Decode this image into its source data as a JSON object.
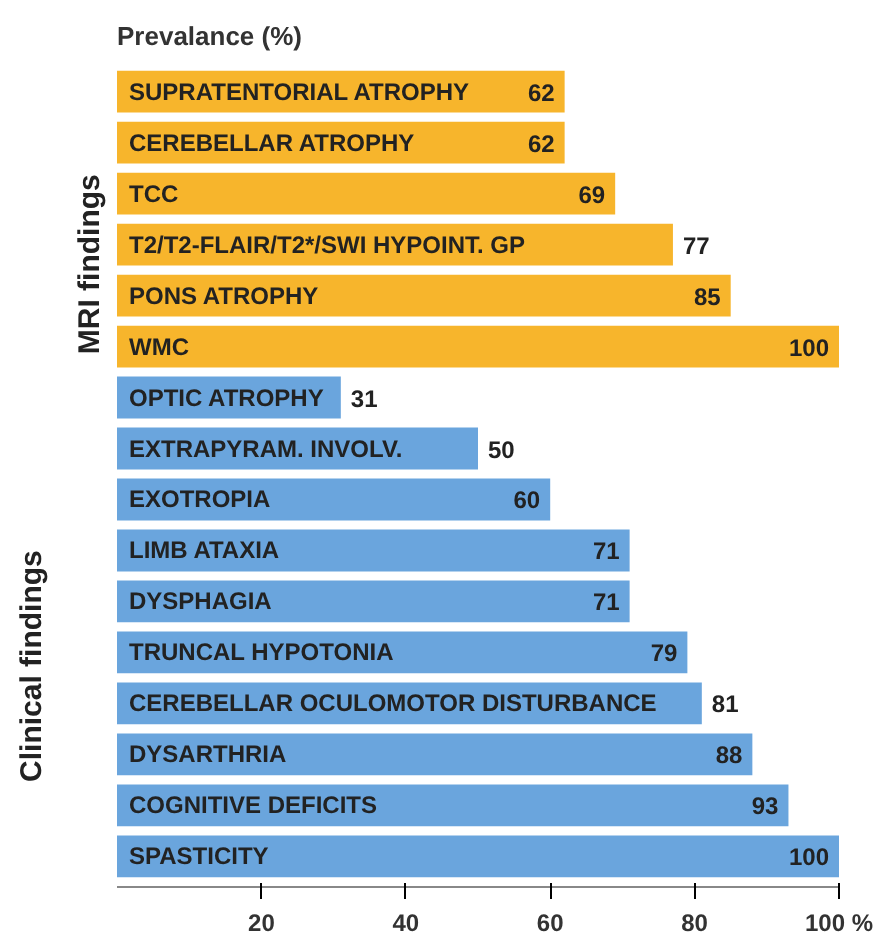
{
  "chart_data": {
    "type": "bar",
    "orientation": "horizontal",
    "xlabel": "Prevalance (%)",
    "categories": [
      "SUPRATENTORIAL ATROPHY",
      "CEREBELLAR ATROPHY",
      "TCC",
      "T2/T2-FLAIR/T2*/SWI HYPOINT. GP",
      "PONS ATROPHY",
      "WMC",
      "OPTIC ATROPHY",
      "EXTRAPYRAM. INVOLV.",
      "EXOTROPIA",
      "LIMB ATAXIA",
      "DYSPHAGIA",
      "TRUNCAL HYPOTONIA",
      "CEREBELLAR OCULOMOTOR DISTURBANCE",
      "DYSARTHRIA",
      "COGNITIVE DEFICITS",
      "SPASTICITY"
    ],
    "values": [
      62,
      62,
      69,
      77,
      85,
      100,
      31,
      50,
      60,
      71,
      71,
      79,
      81,
      88,
      93,
      100
    ],
    "colors": [
      "#f7b52c",
      "#f7b52c",
      "#f7b52c",
      "#f7b52c",
      "#f7b52c",
      "#f7b52c",
      "#6aa5dd",
      "#6aa5dd",
      "#6aa5dd",
      "#6aa5dd",
      "#6aa5dd",
      "#6aa5dd",
      "#6aa5dd",
      "#6aa5dd",
      "#6aa5dd",
      "#6aa5dd"
    ],
    "annotations": [
      "MRI findings",
      "Clinical findings"
    ],
    "xlim": [
      0,
      100
    ],
    "xticks": [
      20,
      40,
      60,
      80,
      {
        "value": 100,
        "label": "100 %"
      }
    ],
    "tick_labels": "x",
    "data_labels": true,
    "grid": false
  }
}
